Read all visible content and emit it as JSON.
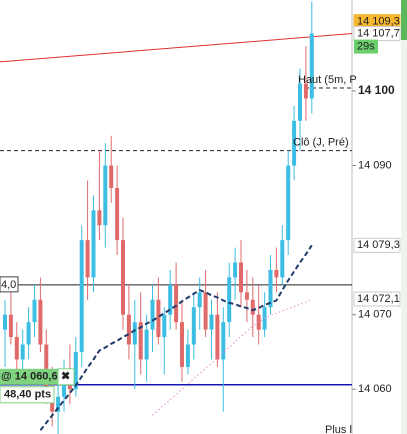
{
  "chart_data": {
    "type": "candlestick",
    "ylim": [
      14054,
      14112.2
    ],
    "yticks": [
      {
        "value": 14100,
        "label": "14 100",
        "bold": true
      },
      {
        "value": 14090,
        "label": "14 090"
      },
      {
        "value": 14070,
        "label": "14 070"
      },
      {
        "value": 14060,
        "label": "14 060"
      }
    ],
    "up_color": "#3cbde3",
    "down_color": "#e06a6a",
    "candles": {
      "open": [
        14068,
        14070,
        14067,
        14064,
        14066,
        14069,
        14072,
        14066,
        14060,
        14057,
        14059,
        14062,
        14060,
        14065,
        14080,
        14075,
        14084,
        14082,
        14090,
        14087,
        14080,
        14070,
        14066,
        14069,
        14064,
        14068,
        14072,
        14067,
        14070,
        14074,
        14069,
        14063,
        14066,
        14071,
        14073,
        14068,
        14070,
        14064,
        14069,
        14075,
        14077,
        14073,
        14072,
        14070,
        14068,
        14071,
        14076,
        14075,
        14080,
        14090,
        14096,
        14101,
        14099
      ],
      "high": [
        14072,
        14073,
        14069,
        14068,
        14071,
        14074,
        14075,
        14068,
        14063,
        14061,
        14064,
        14066,
        14067,
        14082,
        14088,
        14086,
        14092,
        14093,
        14094,
        14090,
        14083,
        14074,
        14072,
        14073,
        14070,
        14074,
        14075,
        14071,
        14076,
        14077,
        14072,
        14068,
        14073,
        14075,
        14076,
        14072,
        14073,
        14071,
        14077,
        14079,
        14080,
        14076,
        14075,
        14074,
        14073,
        14078,
        14079,
        14082,
        14092,
        14098,
        14103,
        14106,
        14112
      ],
      "low": [
        14063,
        14066,
        14062,
        14060,
        14064,
        14067,
        14065,
        14058,
        14055,
        14054,
        14057,
        14058,
        14059,
        14063,
        14072,
        14073,
        14080,
        14079,
        14085,
        14078,
        14068,
        14064,
        14060,
        14062,
        14061,
        14065,
        14066,
        14062,
        14068,
        14068,
        14061,
        14062,
        14064,
        14068,
        14067,
        14064,
        14063,
        14057,
        14067,
        14072,
        14071,
        14069,
        14067,
        14066,
        14067,
        14070,
        14073,
        14074,
        14078,
        14088,
        14092,
        14096,
        14097
      ],
      "close": [
        14070,
        14067,
        14064,
        14066,
        14069,
        14072,
        14066,
        14060,
        14057,
        14059,
        14062,
        14060,
        14065,
        14080,
        14075,
        14084,
        14082,
        14090,
        14087,
        14080,
        14070,
        14066,
        14069,
        14064,
        14068,
        14072,
        14067,
        14070,
        14074,
        14069,
        14063,
        14066,
        14071,
        14073,
        14068,
        14070,
        14064,
        14069,
        14075,
        14077,
        14073,
        14072,
        14070,
        14068,
        14071,
        14076,
        14075,
        14080,
        14090,
        14096,
        14101,
        14099,
        14107.7
      ]
    },
    "overlays": [
      {
        "color": "#1f3a6b",
        "style": "dashed",
        "values": [
          null,
          null,
          null,
          null,
          null,
          null,
          14054.5,
          14055.5,
          14056.5,
          14057.5,
          14058.5,
          14059.5,
          14060.5,
          14061.7,
          14062.9,
          14064.0,
          14065.2,
          14065.6,
          14066.1,
          14066.5,
          14067.0,
          14067.4,
          14067.9,
          14068.3,
          14068.8,
          14069.2,
          14069.7,
          14070.2,
          14070.7,
          14071.2,
          14071.8,
          14072.3,
          14072.8,
          14073.3,
          14073.0,
          14072.6,
          14072.3,
          14071.9,
          14071.6,
          14071.4,
          14071.1,
          14070.9,
          14070.6,
          14070.9,
          14071.3,
          14071.6,
          14071.9,
          14073.3,
          14074.6,
          14075.8,
          14077.0,
          14078.1,
          14079.3
        ]
      },
      {
        "color": "#e88ad0",
        "style": "dotted",
        "values": [
          null,
          null,
          null,
          null,
          null,
          null,
          null,
          null,
          null,
          null,
          null,
          null,
          null,
          null,
          null,
          null,
          null,
          null,
          null,
          null,
          null,
          null,
          null,
          null,
          null,
          14056.5,
          14057.2,
          14057.9,
          14058.6,
          14059.3,
          14060.0,
          14060.7,
          14061.4,
          14062.1,
          14062.8,
          14063.5,
          14064.2,
          14064.9,
          14065.6,
          14066.4,
          14067.1,
          14067.8,
          14068.5,
          14069.0,
          14069.5,
          14069.9,
          14070.2,
          14070.5,
          14070.8,
          14071.1,
          14071.4,
          14071.7,
          14072.1
        ]
      }
    ],
    "trendline": {
      "color": "#e03030",
      "start": 14103.9,
      "end": 14107.7
    },
    "levels": [
      {
        "value": 14100.4,
        "label": "Haut (5m, P",
        "style": "dashed",
        "color": "#222"
      },
      {
        "value": 14092.0,
        "label": "Clô (J, Pré)",
        "style": "dashed",
        "color": "#222"
      },
      {
        "value": 14074.0,
        "label": "4,0",
        "style": "solid",
        "color": "#222"
      },
      {
        "value": 14060.6,
        "style": "solid",
        "color": "#1515b0"
      }
    ],
    "price_tags": [
      {
        "value": 14109.3,
        "label": "14 109,3",
        "bg": "#f7b733",
        "color": "#222"
      },
      {
        "value": 14107.7,
        "label": "14 107,7",
        "bg": "#ffffff",
        "color": "#222"
      },
      {
        "value": 14079.3,
        "label": "14 079,3",
        "bg": "#ffffff",
        "color": "#1f3a6b"
      },
      {
        "value": 14072.1,
        "label": "14 072,1",
        "bg": "#ffffff",
        "color": "#d050b0"
      }
    ],
    "timer": "29s",
    "order": {
      "value": 14060.6,
      "label": "@ 14 060,6",
      "close": "✖",
      "points": "48,40 pts"
    },
    "footer": "Plus l"
  }
}
